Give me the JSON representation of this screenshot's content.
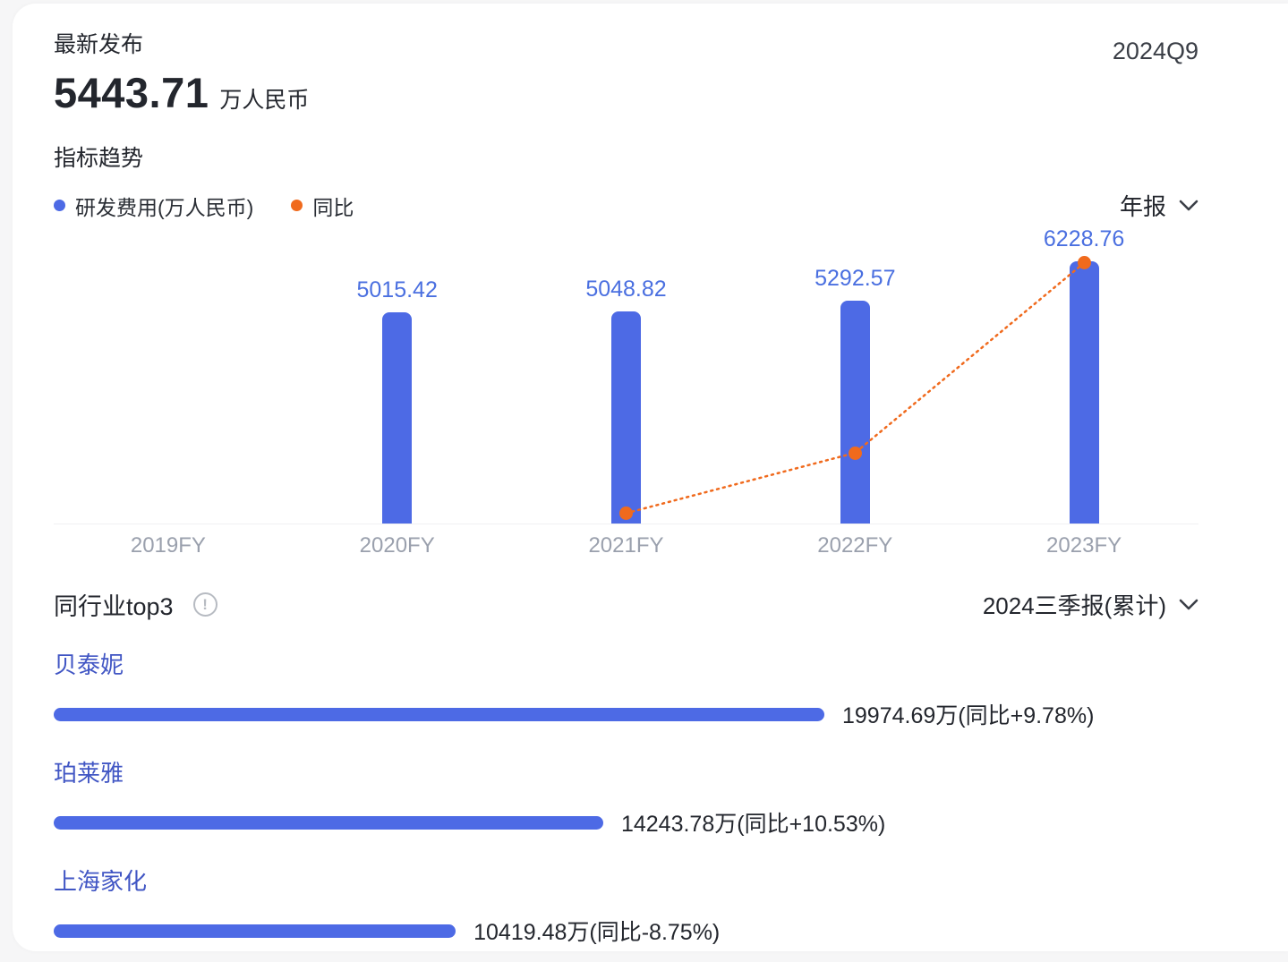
{
  "header": {
    "latest_label": "最新发布",
    "value": "5443.71",
    "unit": "万人民币",
    "period": "2024Q9"
  },
  "trend": {
    "title": "指标趋势",
    "legend": [
      {
        "label": "研发费用(万人民币)",
        "color": "#4d6ae5"
      },
      {
        "label": "同比",
        "color": "#f06a1d"
      }
    ],
    "period_selector": "年报"
  },
  "peers": {
    "title": "同行业top3",
    "info_icon": "info-circle-icon",
    "period_selector": "2024三季报(累计)"
  },
  "colors": {
    "bar_blue": "#4d6ae5",
    "yoy_orange": "#f06a1d",
    "value_label_blue": "#4a6fe0",
    "axis_gray": "#9aa0ad",
    "text_dark": "#23262d",
    "link_blue": "#4156c4"
  },
  "chart_data": [
    {
      "type": "bar",
      "title": "指标趋势",
      "categories": [
        "2019FY",
        "2020FY",
        "2021FY",
        "2022FY",
        "2023FY"
      ],
      "series": [
        {
          "name": "研发费用(万人民币)",
          "type": "bar",
          "color": "#4d6ae5",
          "values": [
            null,
            5015.42,
            5048.82,
            5292.57,
            6228.76
          ]
        },
        {
          "name": "同比",
          "type": "line",
          "line_style": "dotted",
          "color": "#f06a1d",
          "unit": "%",
          "estimated": true,
          "values": [
            null,
            null,
            0.7,
            4.8,
            17.7
          ]
        }
      ],
      "ylim": [
        0,
        7000
      ],
      "secondary_ylim_percent": [
        0,
        20
      ],
      "grid": false,
      "legend_position": "top-left",
      "data_labels": true
    },
    {
      "type": "bar",
      "orientation": "horizontal",
      "title": "同行业top3",
      "xlim": [
        0,
        19974.69
      ],
      "bar_color": "#4d6ae5",
      "items": [
        {
          "name": "贝泰妮",
          "value_wan": 19974.69,
          "label": "19974.69万(同比+9.78%)"
        },
        {
          "name": "珀莱雅",
          "value_wan": 14243.78,
          "label": "14243.78万(同比+10.53%)"
        },
        {
          "name": "上海家化",
          "value_wan": 10419.48,
          "label": "10419.48万(同比-8.75%)"
        }
      ]
    }
  ]
}
